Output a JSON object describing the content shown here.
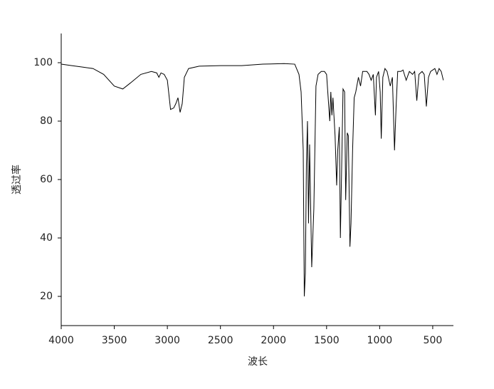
{
  "chart_data": {
    "type": "line",
    "x_label": "波长",
    "y_label": "透过率",
    "xlim": [
      4000,
      305
    ],
    "ylim": [
      10,
      110
    ],
    "xticks": [
      4000,
      3500,
      3000,
      2500,
      2000,
      1500,
      1000,
      500
    ],
    "yticks": [
      20,
      40,
      60,
      80,
      100
    ],
    "x": [
      4000,
      3900,
      3800,
      3700,
      3600,
      3500,
      3420,
      3350,
      3250,
      3150,
      3100,
      3080,
      3060,
      3030,
      3000,
      2970,
      2940,
      2920,
      2900,
      2880,
      2860,
      2840,
      2800,
      2700,
      2500,
      2300,
      2100,
      1900,
      1800,
      1760,
      1740,
      1720,
      1710,
      1700,
      1690,
      1680,
      1670,
      1660,
      1640,
      1620,
      1600,
      1580,
      1550,
      1520,
      1500,
      1470,
      1460,
      1450,
      1440,
      1420,
      1405,
      1395,
      1380,
      1370,
      1360,
      1345,
      1330,
      1320,
      1305,
      1295,
      1280,
      1270,
      1255,
      1240,
      1225,
      1200,
      1180,
      1160,
      1120,
      1100,
      1080,
      1060,
      1040,
      1030,
      1010,
      995,
      985,
      970,
      950,
      930,
      900,
      880,
      860,
      845,
      830,
      800,
      780,
      750,
      720,
      690,
      670,
      650,
      630,
      600,
      580,
      560,
      540,
      520,
      480,
      460,
      440,
      420,
      400
    ],
    "series": [
      {
        "color": "#000000",
        "values": [
          99.5,
          99,
          98.5,
          98,
          96,
          92,
          91,
          93,
          96,
          97,
          96.5,
          95,
          96.5,
          96,
          94,
          84,
          84.5,
          86,
          88,
          83,
          86,
          95,
          98,
          98.8,
          99,
          99,
          99.5,
          99.7,
          99.5,
          96,
          90,
          70,
          20,
          28,
          65,
          80,
          45,
          72,
          30,
          50,
          92,
          96,
          97,
          97,
          96,
          80,
          90,
          82,
          88,
          75,
          58,
          70,
          78,
          40,
          60,
          91,
          90,
          53,
          76,
          75,
          37,
          45,
          70,
          88,
          90,
          95,
          92,
          97,
          97,
          96,
          94,
          96,
          82,
          95,
          97,
          90,
          74,
          95,
          98,
          97,
          92,
          95,
          70,
          85,
          97,
          97,
          97.5,
          94,
          97,
          96,
          97,
          87,
          96,
          97,
          96,
          85,
          95,
          97,
          98,
          96,
          98,
          97,
          94
        ]
      }
    ]
  }
}
